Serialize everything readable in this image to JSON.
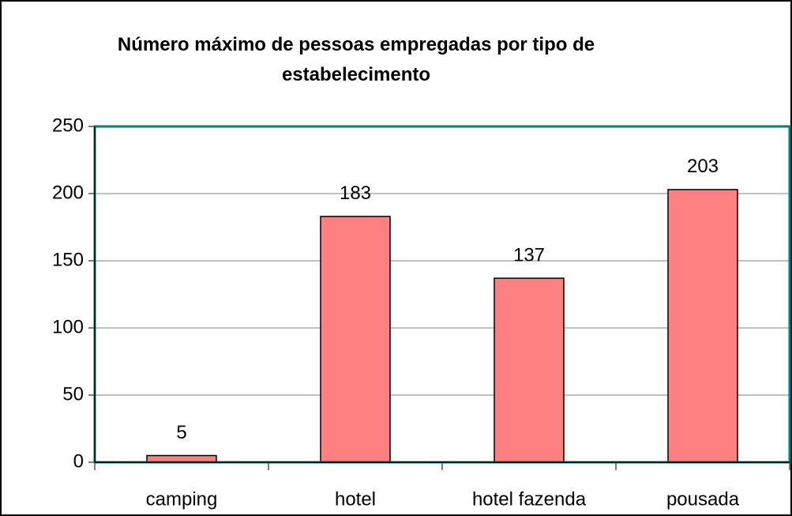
{
  "chart_data": {
    "type": "bar",
    "title": "Número máximo de pessoas empregadas por tipo de estabelecimento",
    "categories": [
      "camping",
      "hotel",
      "hotel fazenda",
      "pousada"
    ],
    "values": [
      5,
      183,
      137,
      203
    ],
    "color": "#ff8080",
    "ylim": [
      0,
      250
    ],
    "yticks": [
      0,
      50,
      100,
      150,
      200,
      250
    ],
    "grid": true
  }
}
